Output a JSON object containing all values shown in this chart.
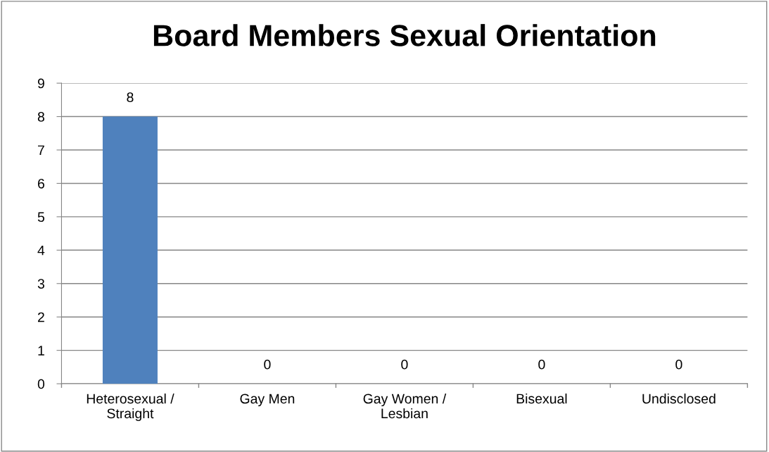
{
  "chart_data": {
    "type": "bar",
    "title": "Board Members Sexual Orientation",
    "categories": [
      "Heterosexual /\nStraight",
      "Gay Men",
      "Gay Women /\nLesbian",
      "Bisexual",
      "Undisclosed"
    ],
    "values": [
      8,
      0,
      0,
      0,
      0
    ],
    "color": "#4f81bd",
    "ylim": [
      0,
      9
    ],
    "yticks": [
      0,
      1,
      2,
      3,
      4,
      5,
      6,
      7,
      8,
      9
    ],
    "grid": "y",
    "data_labels": true,
    "legend": false
  }
}
